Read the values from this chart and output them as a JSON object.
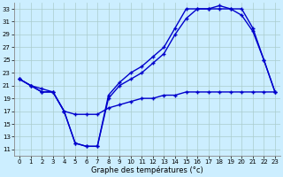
{
  "xlabel": "Graphe des températures (°c)",
  "background_color": "#cceeff",
  "line_color": "#0000cc",
  "xlim": [
    -0.5,
    23.5
  ],
  "ylim": [
    10,
    34
  ],
  "yticks": [
    11,
    13,
    15,
    17,
    19,
    21,
    23,
    25,
    27,
    29,
    31,
    33
  ],
  "xticks": [
    0,
    1,
    2,
    3,
    4,
    5,
    6,
    7,
    8,
    9,
    10,
    11,
    12,
    13,
    14,
    15,
    16,
    17,
    18,
    19,
    20,
    21,
    22,
    23
  ],
  "line1_x": [
    0,
    1,
    2,
    3,
    4,
    5,
    6,
    7,
    8,
    9,
    10,
    11,
    12,
    13,
    14,
    15,
    16,
    17,
    18,
    19,
    20,
    21,
    22,
    23
  ],
  "line1_y": [
    22,
    21,
    20,
    20,
    17,
    12,
    11.5,
    11.5,
    19.5,
    21.5,
    23,
    24,
    25.5,
    27,
    30,
    33,
    33,
    33,
    33,
    33,
    33,
    30,
    25,
    20
  ],
  "line2_x": [
    0,
    1,
    2,
    3,
    4,
    5,
    6,
    7,
    8,
    9,
    10,
    11,
    12,
    13,
    14,
    15,
    16,
    17,
    18,
    19,
    20,
    21,
    22,
    23
  ],
  "line2_y": [
    22,
    21,
    20,
    20,
    17,
    12,
    11.5,
    11.5,
    19,
    21,
    22,
    23,
    24.5,
    26,
    29,
    31.5,
    33,
    33,
    33.5,
    33,
    32,
    29.5,
    25,
    20
  ],
  "line3_x": [
    0,
    1,
    2,
    3,
    4,
    5,
    6,
    7,
    8,
    9,
    10,
    11,
    12,
    13,
    14,
    15,
    16,
    17,
    18,
    19,
    20,
    21,
    22,
    23
  ],
  "line3_y": [
    22,
    21,
    20.5,
    20,
    17,
    16.5,
    16.5,
    16.5,
    17.5,
    18,
    18.5,
    19,
    19,
    19.5,
    19.5,
    20,
    20,
    20,
    20,
    20,
    20,
    20,
    20,
    20
  ],
  "xlabel_fontsize": 6,
  "tick_fontsize": 5,
  "linewidth": 1.0,
  "markersize": 3.5
}
